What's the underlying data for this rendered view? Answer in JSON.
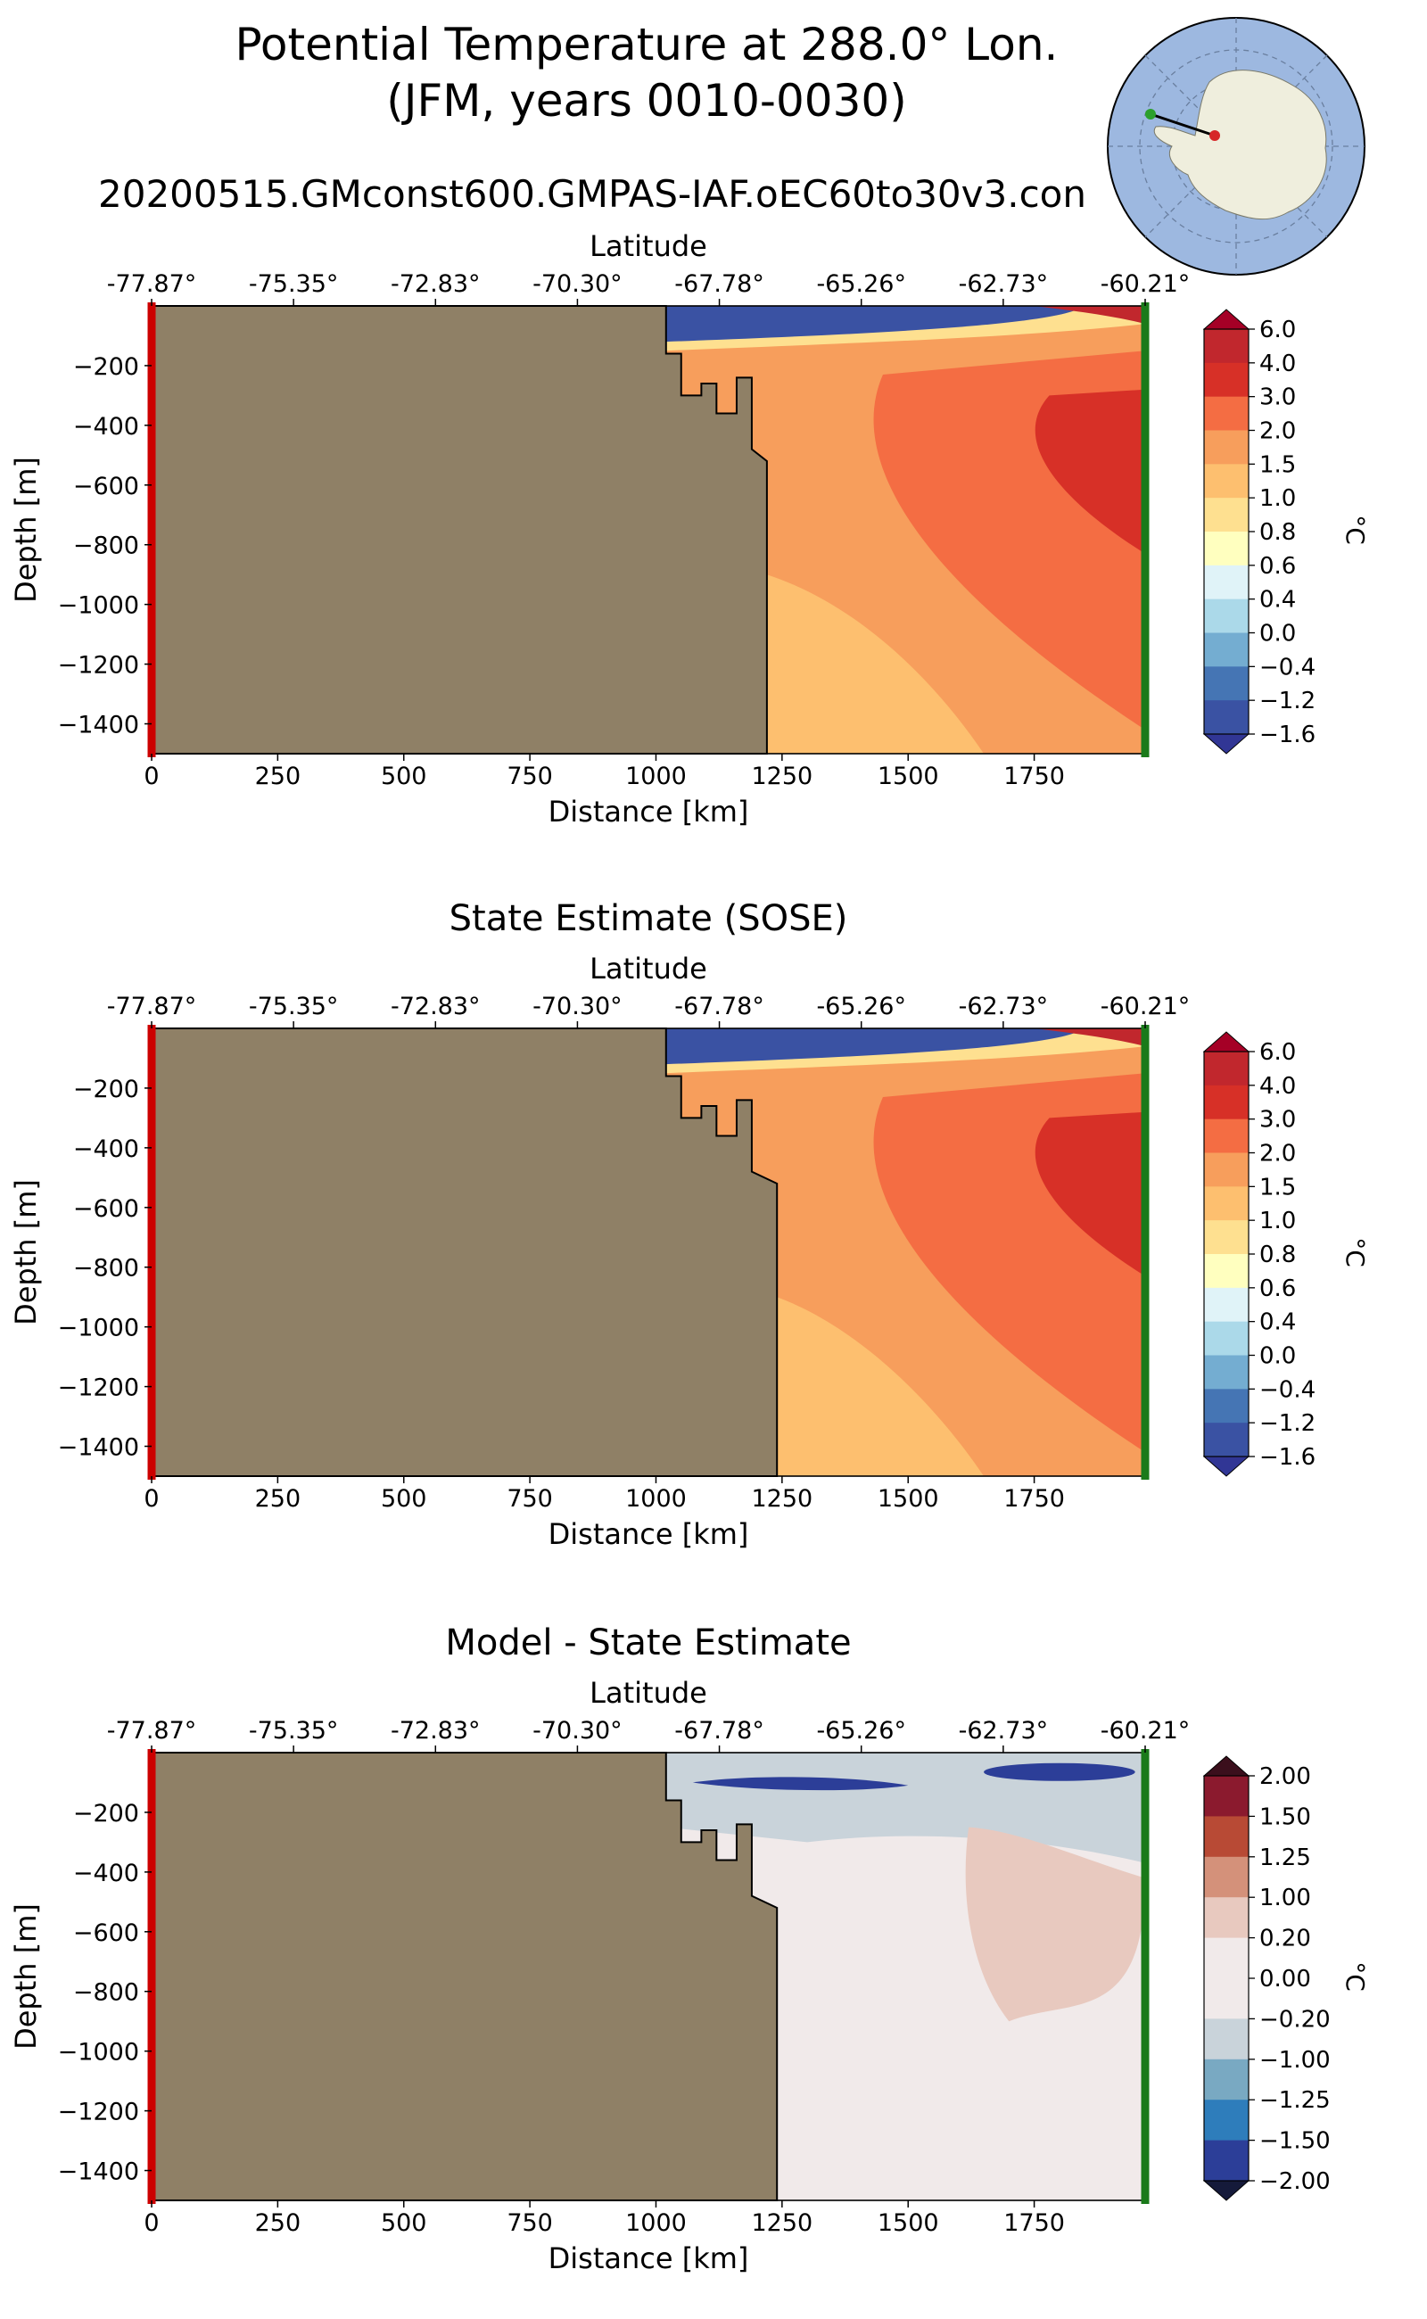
{
  "figure": {
    "title_line1": "Potential Temperature at 288.0° Lon.",
    "title_line2": "(JFM, years 0010-0030)",
    "run_name": "20200515.GMconst600.GMPAS-IAF.oEC60to30v3.con"
  },
  "colors": {
    "land": "#8f8066",
    "start_marker": "#cc0000",
    "end_marker": "#1a7a1a",
    "map_ocean": "#9db8e0",
    "map_land": "#efeedd"
  },
  "inset_map": {
    "description_icon": "antarctica-inset-map-icon",
    "section_start_color": "#d62728",
    "section_end_color": "#2ca02c"
  },
  "chart_data": [
    {
      "type": "contourf",
      "title": "",
      "xlabel": "Distance [km]",
      "ylabel": "Depth [m]",
      "top_axis_label": "Latitude",
      "top_ticks": [
        "-77.87°",
        "-75.35°",
        "-72.83°",
        "-70.30°",
        "-67.78°",
        "-65.26°",
        "-62.73°",
        "-60.21°"
      ],
      "xticks": [
        "0",
        "250",
        "500",
        "750",
        "1000",
        "1250",
        "1500",
        "1750"
      ],
      "yticks": [
        "−200",
        "−400",
        "−600",
        "−800",
        "−1000",
        "−1200",
        "−1400"
      ],
      "xlim": [
        0,
        1970
      ],
      "ylim": [
        -1500,
        0
      ],
      "colorbar": {
        "unit": "°C",
        "levels": [
          "6.0",
          "4.0",
          "3.0",
          "2.0",
          "1.5",
          "1.0",
          "0.8",
          "0.6",
          "0.4",
          "0.0",
          "−0.4",
          "−1.2",
          "−1.6"
        ],
        "colors": [
          "#a50026",
          "#c1272d",
          "#d73027",
          "#f46d43",
          "#f79e5c",
          "#fdbf6f",
          "#fee090",
          "#ffffbf",
          "#e0f3f8",
          "#abd9e9",
          "#74add1",
          "#4575b4",
          "#3a52a3",
          "#313695"
        ],
        "extend": "both"
      },
      "coastline_km": 1220,
      "fields": [
        {
          "name": "deep-light-orange",
          "value": 1.2
        },
        {
          "name": "orange-mid",
          "value": 1.7
        },
        {
          "name": "dark-orange",
          "value": 2.5
        },
        {
          "name": "red-core",
          "value": 3.2
        },
        {
          "name": "surface-cold-tongue",
          "value": -1.4
        },
        {
          "name": "surface-warm",
          "value": 4.5
        }
      ]
    },
    {
      "type": "contourf",
      "title": "State Estimate (SOSE)",
      "xlabel": "Distance [km]",
      "ylabel": "Depth [m]",
      "top_axis_label": "Latitude",
      "top_ticks": [
        "-77.87°",
        "-75.35°",
        "-72.83°",
        "-70.30°",
        "-67.78°",
        "-65.26°",
        "-62.73°",
        "-60.21°"
      ],
      "xticks": [
        "0",
        "250",
        "500",
        "750",
        "1000",
        "1250",
        "1500",
        "1750"
      ],
      "yticks": [
        "−200",
        "−400",
        "−600",
        "−800",
        "−1000",
        "−1200",
        "−1400"
      ],
      "xlim": [
        0,
        1970
      ],
      "ylim": [
        -1500,
        0
      ],
      "colorbar": {
        "unit": "°C",
        "levels": [
          "6.0",
          "4.0",
          "3.0",
          "2.0",
          "1.5",
          "1.0",
          "0.8",
          "0.6",
          "0.4",
          "0.0",
          "−0.4",
          "−1.2",
          "−1.6"
        ],
        "colors": [
          "#a50026",
          "#c1272d",
          "#d73027",
          "#f46d43",
          "#f79e5c",
          "#fdbf6f",
          "#fee090",
          "#ffffbf",
          "#e0f3f8",
          "#abd9e9",
          "#74add1",
          "#4575b4",
          "#3a52a3",
          "#313695"
        ],
        "extend": "both"
      },
      "coastline_km": 1240,
      "fields": [
        {
          "name": "deep-light-orange",
          "value": 1.1
        },
        {
          "name": "orange-mid",
          "value": 1.8
        },
        {
          "name": "dark-orange",
          "value": 2.5
        },
        {
          "name": "red-core",
          "value": 3.3
        },
        {
          "name": "surface-cold-tongue",
          "value": -1.3
        },
        {
          "name": "surface-warm",
          "value": 4.5
        }
      ]
    },
    {
      "type": "contourf",
      "title": "Model - State Estimate",
      "xlabel": "Distance [km]",
      "ylabel": "Depth [m]",
      "top_axis_label": "Latitude",
      "top_ticks": [
        "-77.87°",
        "-75.35°",
        "-72.83°",
        "-70.30°",
        "-67.78°",
        "-65.26°",
        "-62.73°",
        "-60.21°"
      ],
      "xticks": [
        "0",
        "250",
        "500",
        "750",
        "1000",
        "1250",
        "1500",
        "1750"
      ],
      "yticks": [
        "−200",
        "−400",
        "−600",
        "−800",
        "−1000",
        "−1200",
        "−1400"
      ],
      "xlim": [
        0,
        1970
      ],
      "ylim": [
        -1500,
        0
      ],
      "colorbar": {
        "unit": "°C",
        "levels": [
          "2.00",
          "1.50",
          "1.25",
          "1.00",
          "0.20",
          "0.00",
          "−0.20",
          "−1.00",
          "−1.25",
          "−1.50",
          "−2.00"
        ],
        "colors": [
          "#3b0f1c",
          "#8b1a2e",
          "#b84a35",
          "#d4917a",
          "#e8c9bf",
          "#f1eaea",
          "#f1eaea",
          "#c9d3da",
          "#79a9c2",
          "#2e7dbb",
          "#2c3e98",
          "#151a3a"
        ],
        "extend": "both"
      },
      "coastline_km": 1240,
      "fields": [
        {
          "name": "background-near-zero",
          "value": 0.0
        },
        {
          "name": "upper-slight-cool",
          "value": -0.5
        },
        {
          "name": "lower-slight-warm",
          "value": 0.5
        },
        {
          "name": "subsurface-cold-anomaly",
          "value": -1.6
        },
        {
          "name": "offshore-cold-core",
          "value": -2.0
        }
      ]
    }
  ]
}
